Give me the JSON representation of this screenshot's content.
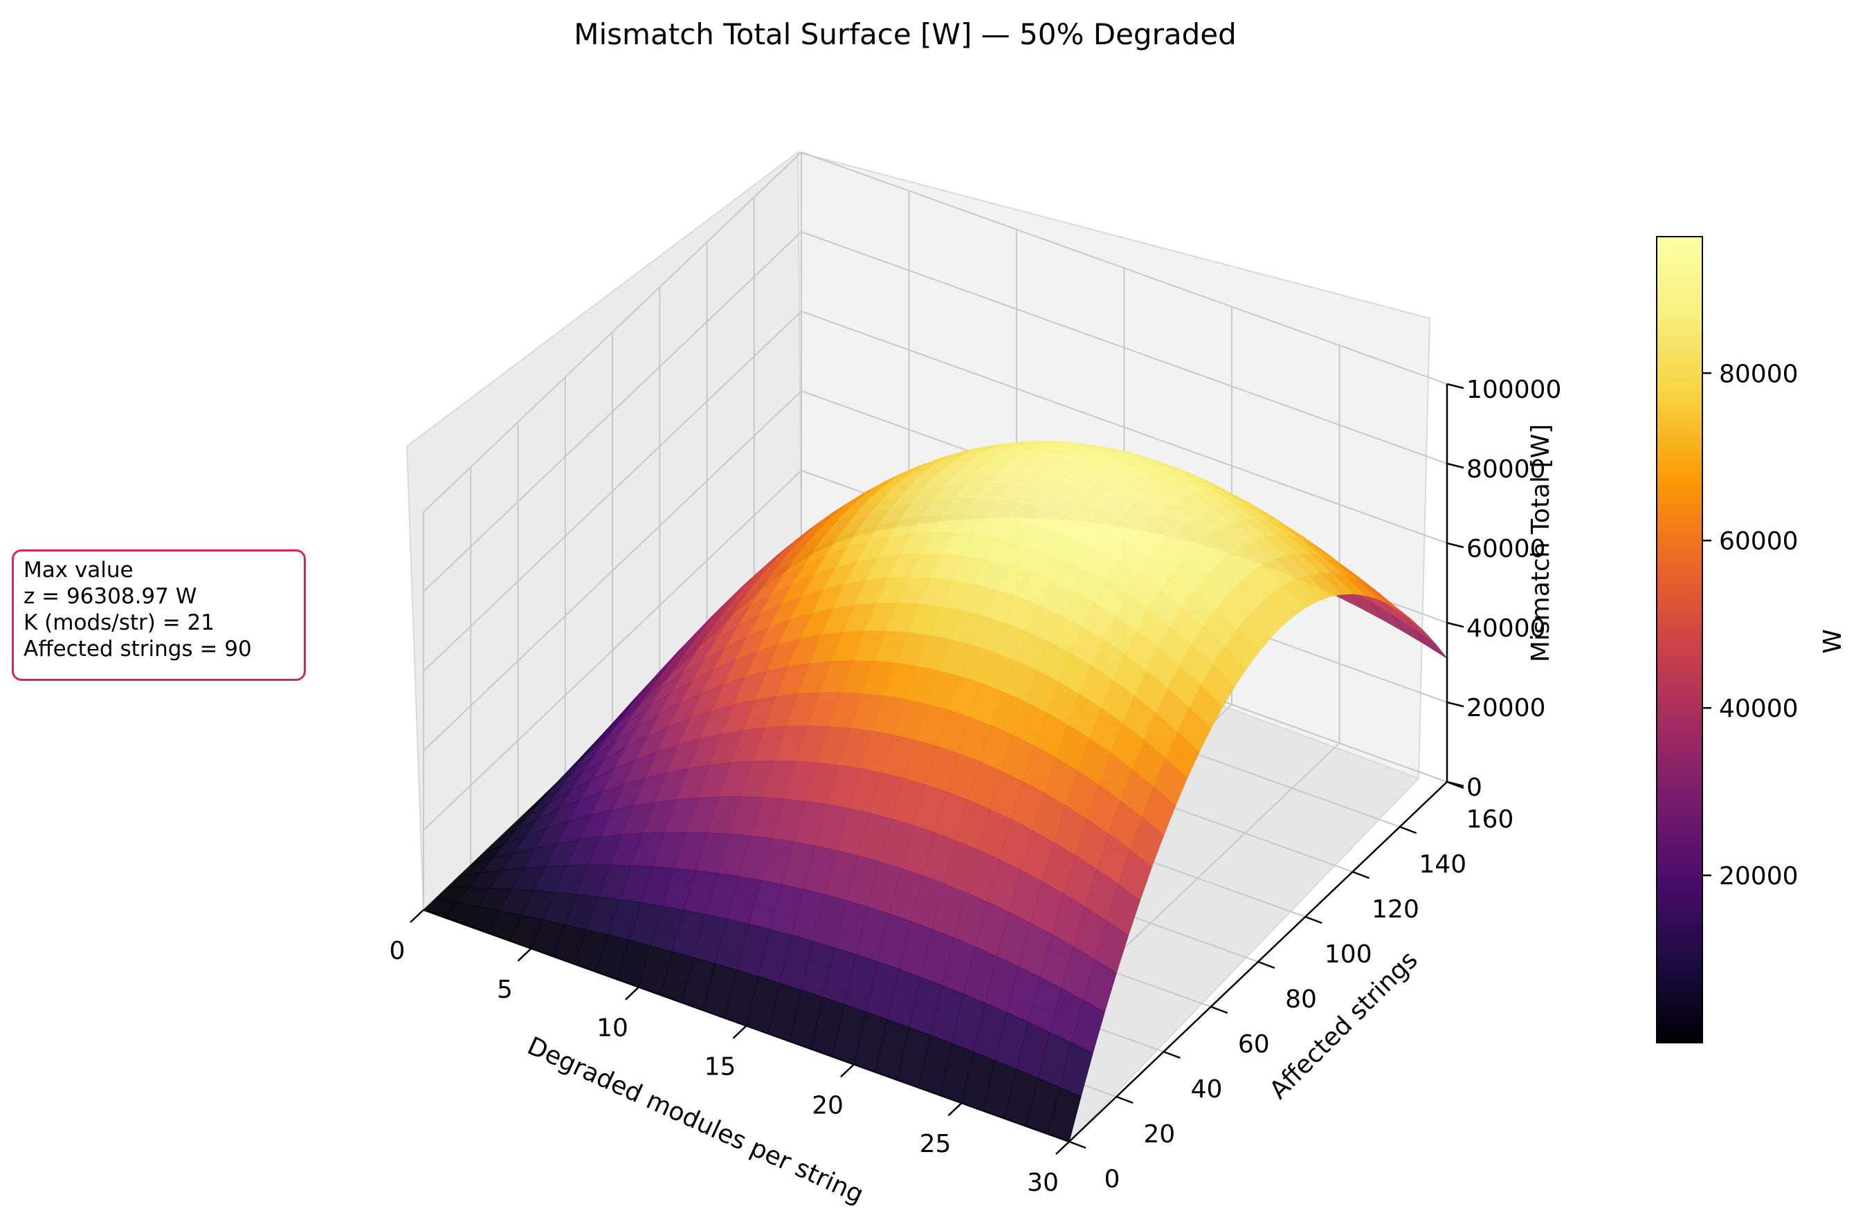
{
  "chart_data": {
    "type": "surface",
    "title": "Mismatch Total Surface [W] — 50% Degraded",
    "xlabel": "Degraded modules per string",
    "ylabel": "Affected strings",
    "zlabel": "Mismatch Total [W]",
    "xlim": [
      0,
      30
    ],
    "ylim": [
      0,
      160
    ],
    "zlim": [
      0,
      100000
    ],
    "x_ticks": [
      "0",
      "5",
      "10",
      "15",
      "20",
      "25",
      "30"
    ],
    "y_ticks": [
      "0",
      "20",
      "40",
      "60",
      "80",
      "100",
      "120",
      "140",
      "160"
    ],
    "z_ticks": [
      "0",
      "20000",
      "40000",
      "60000",
      "80000",
      "100000"
    ],
    "colormap": "inferno",
    "colorbar": {
      "label": "W",
      "range": [
        0,
        96309
      ],
      "ticks": [
        "20000",
        "40000",
        "60000",
        "80000"
      ]
    },
    "max_point": {
      "x": 21,
      "y": 90,
      "z": 96308.97
    },
    "model": "z ≈ 96308.97 · (x/21)·(2 − x/21) · (y/90)·(2 − y/90), clipped at 0"
  },
  "annotation": {
    "line1": "Max value",
    "line2": "z = 96308.97 W",
    "line3": "K (mods/str) = 21",
    "line4": "Affected strings = 90"
  }
}
